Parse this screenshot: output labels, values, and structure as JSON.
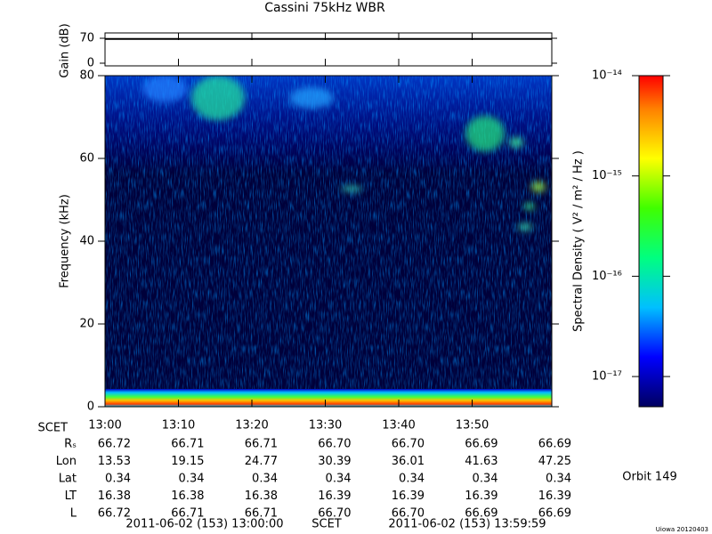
{
  "chart_data": {
    "type": "spectrogram",
    "title": "Cassini 75kHz WBR",
    "ylabel": "Frequency (kHz)",
    "ylim": [
      0,
      80
    ],
    "yticks": [
      0,
      20,
      40,
      60,
      80
    ],
    "xticks": [
      "13:00",
      "13:10",
      "13:20",
      "13:30",
      "13:40",
      "13:50"
    ],
    "gain": {
      "ylabel": "Gain (dB)",
      "ylim": [
        -7.5,
        85
      ],
      "yticks": [
        0,
        70
      ],
      "values": [
        68
      ],
      "color": "#000000"
    },
    "colorbar": {
      "label": "Spectral Density ( V² / m² / Hz )",
      "log": true,
      "lim": [
        5e-18,
        1e-14
      ],
      "ticks": [
        {
          "value": 1e-14,
          "label": "10⁻¹⁴"
        },
        {
          "value": 1e-15,
          "label": "10⁻¹⁵"
        },
        {
          "value": 1e-16,
          "label": "10⁻¹⁶"
        },
        {
          "value": 1e-17,
          "label": "10⁻¹⁷"
        }
      ]
    },
    "ephemeris": {
      "header": "SCET",
      "rows": [
        {
          "label": "Rₛ",
          "values": [
            "66.72",
            "66.71",
            "66.71",
            "66.70",
            "66.70",
            "66.69",
            "66.69"
          ]
        },
        {
          "label": "Lon",
          "values": [
            "13.53",
            "19.15",
            "24.77",
            "30.39",
            "36.01",
            "41.63",
            "47.25"
          ]
        },
        {
          "label": "Lat",
          "values": [
            "0.34",
            "0.34",
            "0.34",
            "0.34",
            "0.34",
            "0.34",
            "0.34"
          ]
        },
        {
          "label": "LT",
          "values": [
            "16.38",
            "16.38",
            "16.38",
            "16.39",
            "16.39",
            "16.39",
            "16.39"
          ]
        },
        {
          "label": "L",
          "values": [
            "66.72",
            "66.71",
            "66.71",
            "66.70",
            "66.70",
            "66.69",
            "66.69"
          ]
        }
      ]
    },
    "start": "2011-06-02 (153) 13:00:00",
    "scet": "SCET",
    "end": "2011-06-02 (153) 13:59:59",
    "orbit": "Orbit 149",
    "credit": "Uiowa 20120403"
  }
}
